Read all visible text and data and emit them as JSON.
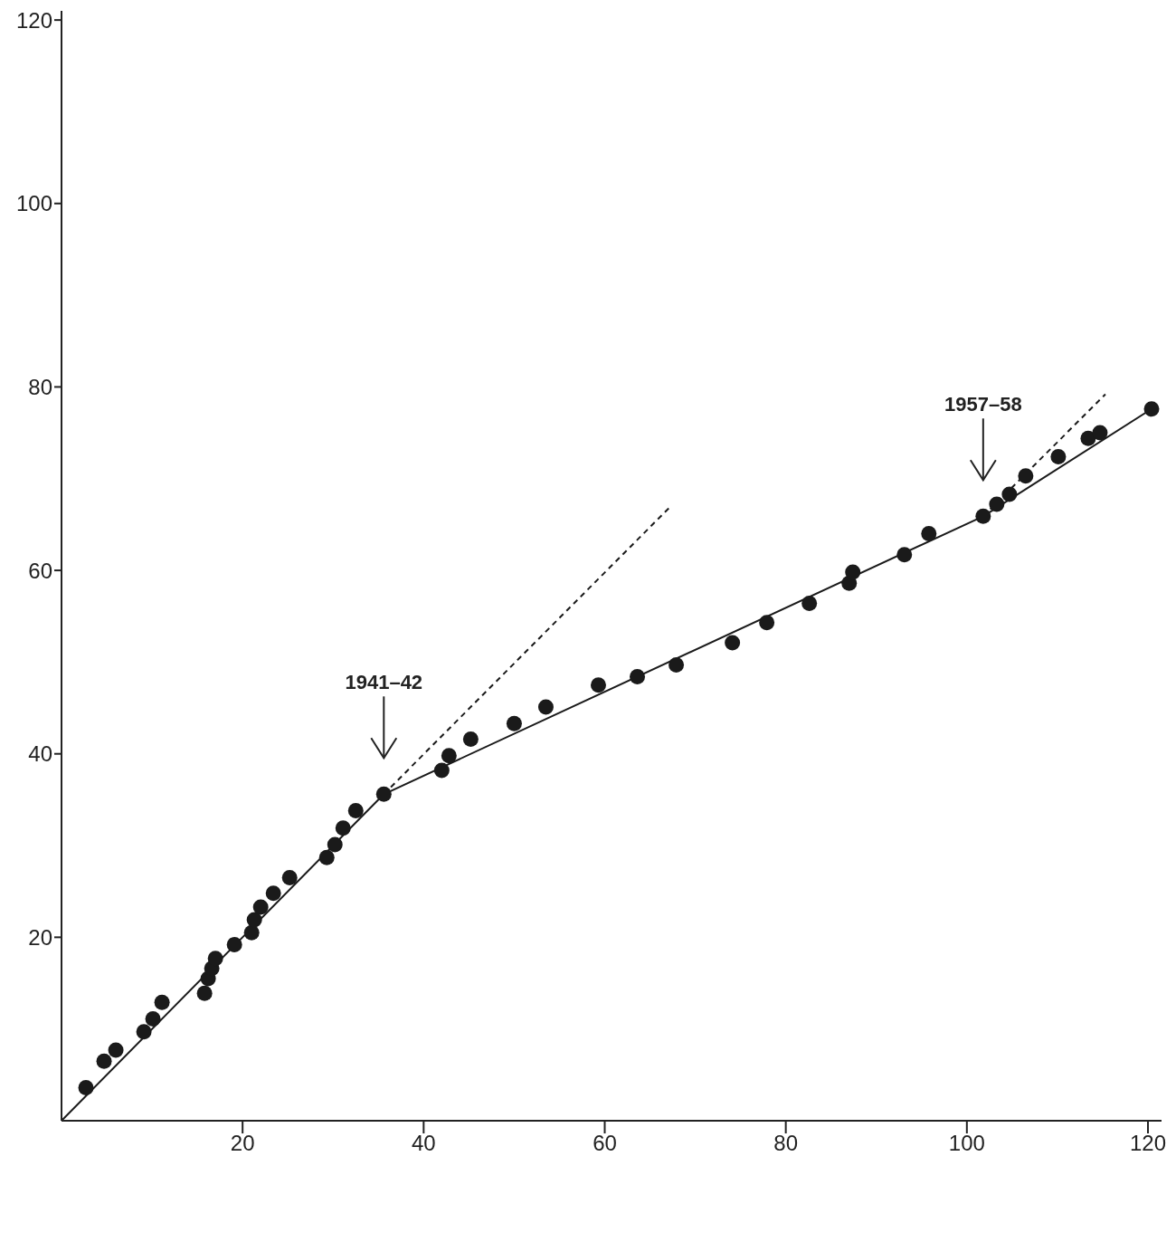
{
  "chart_data": {
    "type": "scatter",
    "xlim": [
      0,
      121.5
    ],
    "ylim": [
      0,
      121
    ],
    "xticks": [
      20,
      40,
      60,
      80,
      100,
      120
    ],
    "yticks": [
      20,
      40,
      60,
      80,
      100,
      120
    ],
    "series": [
      {
        "color": "#1a1a1a",
        "marker": "circle",
        "x": [
          2.7,
          4.7,
          6.0,
          9.1,
          10.1,
          11.1,
          15.8,
          16.2,
          16.6,
          17.0,
          19.1,
          21.0,
          21.3,
          22.0,
          23.4,
          25.2,
          29.3,
          30.2,
          31.1,
          32.5,
          35.6,
          42.0,
          42.8,
          45.2,
          50.0,
          53.5,
          59.3,
          63.6,
          67.9,
          74.1,
          77.9,
          82.6,
          87.0,
          87.4,
          93.1,
          95.8,
          101.8,
          103.3,
          104.7,
          106.5,
          110.1,
          113.4,
          114.7,
          120.4
        ],
        "values": [
          3.6,
          6.5,
          7.7,
          9.7,
          11.1,
          12.9,
          13.9,
          15.5,
          16.6,
          17.7,
          19.2,
          20.5,
          21.9,
          23.3,
          24.8,
          26.5,
          28.7,
          30.1,
          31.9,
          33.8,
          35.6,
          38.2,
          39.8,
          41.6,
          43.3,
          45.1,
          47.5,
          48.4,
          49.7,
          52.1,
          54.3,
          56.4,
          58.6,
          59.8,
          61.7,
          64.0,
          65.9,
          67.2,
          68.3,
          70.3,
          72.4,
          74.4,
          75.0,
          77.6
        ]
      },
      {
        "type": "line",
        "color": "#1a1a1a",
        "marker": "none",
        "line_style": "solid",
        "x": [
          0,
          35.6,
          101.8,
          120.4
        ],
        "values": [
          0,
          35.6,
          65.9,
          77.6
        ]
      },
      {
        "type": "line",
        "color": "#1a1a1a",
        "marker": "none",
        "line_style": "dashed",
        "x": [
          35.6,
          67.2
        ],
        "values": [
          35.6,
          66.9
        ]
      },
      {
        "type": "line",
        "color": "#1a1a1a",
        "marker": "none",
        "line_style": "dashed",
        "x": [
          101.8,
          115.3
        ],
        "values": [
          65.9,
          79.2
        ]
      }
    ],
    "annotations": [
      "1941–42",
      "1957–58"
    ]
  }
}
